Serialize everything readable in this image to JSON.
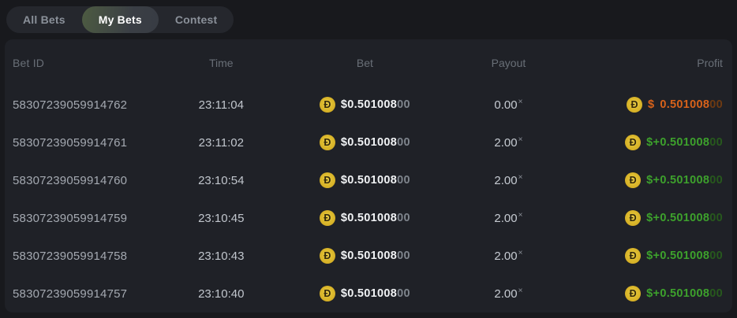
{
  "tabs": [
    {
      "label": "All Bets",
      "active": false
    },
    {
      "label": "My Bets",
      "active": true
    },
    {
      "label": "Contest",
      "active": false
    }
  ],
  "currency": {
    "coin_glyph": "Đ",
    "coin_name": "dogecoin"
  },
  "table": {
    "columns": [
      "Bet ID",
      "Time",
      "Bet",
      "Payout",
      "Profit"
    ],
    "rows": [
      {
        "bet_id": "58307239059914762",
        "time": "23:11:04",
        "bet_main": "$0.501008",
        "bet_dim": "00",
        "payout": "0.00",
        "payout_x": "×",
        "profit_prefix": "$",
        "profit_sign": " ",
        "profit_main": "0.501008",
        "profit_dim": "00",
        "profit_state": "loss"
      },
      {
        "bet_id": "58307239059914761",
        "time": "23:11:02",
        "bet_main": "$0.501008",
        "bet_dim": "00",
        "payout": "2.00",
        "payout_x": "×",
        "profit_prefix": "$",
        "profit_sign": "+",
        "profit_main": "0.501008",
        "profit_dim": "00",
        "profit_state": "win"
      },
      {
        "bet_id": "58307239059914760",
        "time": "23:10:54",
        "bet_main": "$0.501008",
        "bet_dim": "00",
        "payout": "2.00",
        "payout_x": "×",
        "profit_prefix": "$",
        "profit_sign": "+",
        "profit_main": "0.501008",
        "profit_dim": "00",
        "profit_state": "win"
      },
      {
        "bet_id": "58307239059914759",
        "time": "23:10:45",
        "bet_main": "$0.501008",
        "bet_dim": "00",
        "payout": "2.00",
        "payout_x": "×",
        "profit_prefix": "$",
        "profit_sign": "+",
        "profit_main": "0.501008",
        "profit_dim": "00",
        "profit_state": "win"
      },
      {
        "bet_id": "58307239059914758",
        "time": "23:10:43",
        "bet_main": "$0.501008",
        "bet_dim": "00",
        "payout": "2.00",
        "payout_x": "×",
        "profit_prefix": "$",
        "profit_sign": "+",
        "profit_main": "0.501008",
        "profit_dim": "00",
        "profit_state": "win"
      },
      {
        "bet_id": "58307239059914757",
        "time": "23:10:40",
        "bet_main": "$0.501008",
        "bet_dim": "00",
        "payout": "2.00",
        "payout_x": "×",
        "profit_prefix": "$",
        "profit_sign": "+",
        "profit_main": "0.501008",
        "profit_dim": "00",
        "profit_state": "win"
      }
    ]
  },
  "colors": {
    "win": "#3da12c",
    "loss": "#d8621a",
    "coin_gold": "#dcb92d",
    "active_tab_green": "#4d5b42",
    "card_bg": "#1f2127",
    "page_bg": "#18191d"
  }
}
